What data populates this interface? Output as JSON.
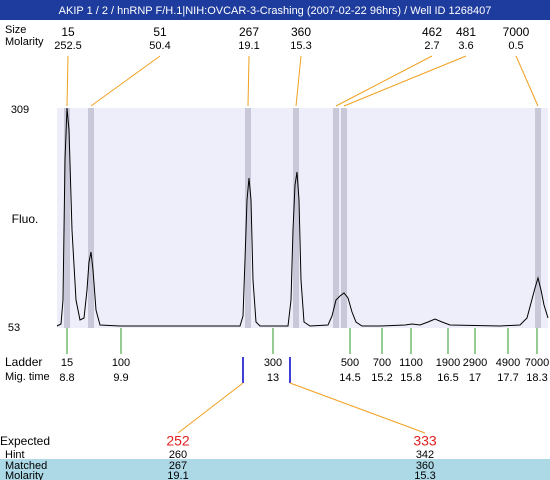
{
  "header": {
    "title": "AKIP 1 / 2 / hnRNP F/H.1|NIH:OVCAR-3-Crashing (2007-02-22 96hrs) / Well ID 1268407"
  },
  "results": {
    "row_labels": [
      "Size",
      "Molarity"
    ],
    "peaks": [
      {
        "size": 15,
        "molarity": 252.5
      },
      {
        "size": 51,
        "molarity": 50.4
      },
      {
        "size": 267,
        "molarity": 19.1
      },
      {
        "size": 360,
        "molarity": 15.3
      },
      {
        "size": 462,
        "molarity": 2.7
      },
      {
        "size": 481,
        "molarity": 3.6
      },
      {
        "size": 7000,
        "molarity": 0.5
      }
    ]
  },
  "plot": {
    "y_label": "Fluo.",
    "ylim": [
      53,
      309
    ]
  },
  "ladder": {
    "label": "Ladder",
    "mig_label": "Mig. time",
    "items": [
      {
        "size": 15,
        "time": 8.8
      },
      {
        "size": 100,
        "time": 9.9
      },
      {
        "size": 300,
        "time": 13
      },
      {
        "size": 500,
        "time": 14.5
      },
      {
        "size": 700,
        "time": 15.2
      },
      {
        "size": 1100,
        "time": 15.8
      },
      {
        "size": 1900,
        "time": 16.5
      },
      {
        "size": 2900,
        "time": 17
      },
      {
        "size": 4900,
        "time": 17.7
      },
      {
        "size": 7000,
        "time": 18.3
      }
    ]
  },
  "expected": {
    "row_labels": [
      "Expected",
      "Hint",
      "Matched",
      "Molarity"
    ],
    "columns": [
      {
        "expected": 252,
        "hint": 260,
        "matched": 267,
        "molarity": 19.1
      },
      {
        "expected": 333,
        "hint": 342,
        "matched": 360,
        "molarity": 15.3
      }
    ]
  }
}
